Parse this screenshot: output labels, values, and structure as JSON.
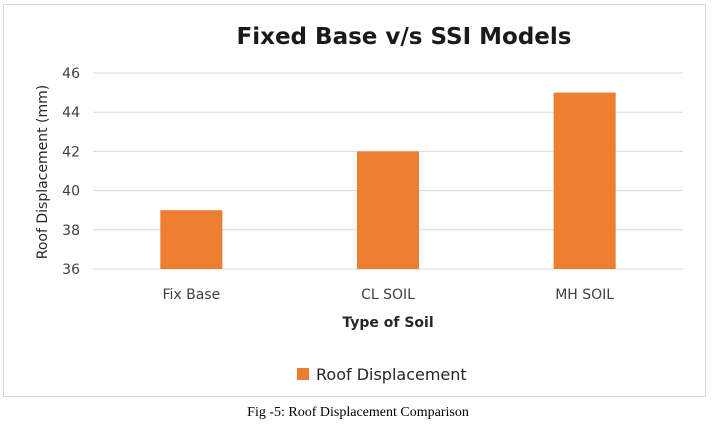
{
  "caption": "Fig -5: Roof Displacement Comparison",
  "chart_data": {
    "type": "bar",
    "title": "Fixed Base v/s SSI Models",
    "xlabel": "Type of Soil",
    "ylabel": "Roof Displacement (mm)",
    "categories": [
      "Fix Base",
      "CL SOIL",
      "MH SOIL"
    ],
    "series": [
      {
        "name": "Roof Displacement",
        "values": [
          39,
          42,
          45
        ],
        "color": "#ED7D31"
      }
    ],
    "ylim": [
      36,
      46
    ],
    "yticks": [
      36,
      38,
      40,
      42,
      44,
      46
    ],
    "grid": true,
    "gridColor": "#d9d9d9",
    "legend": "bottom"
  }
}
